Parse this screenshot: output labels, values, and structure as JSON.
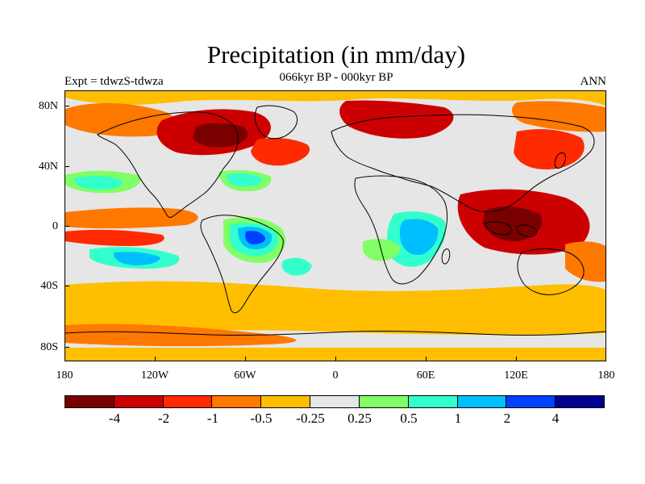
{
  "header": {
    "title": "Precipitation (in mm/day)",
    "left": "Expt = tdwzS-tdwza",
    "center": "066kyr BP - 000kyr BP",
    "right": "ANN"
  },
  "axes": {
    "y_labels": [
      "80N",
      "40N",
      "0",
      "40S",
      "80S"
    ],
    "x_labels": [
      "180",
      "120W",
      "60W",
      "0",
      "60E",
      "120E",
      "180"
    ]
  },
  "colorbar": {
    "colors": [
      "#7a0000",
      "#cc0000",
      "#ff2a00",
      "#ff7800",
      "#ffbe00",
      "#e6e6e6",
      "#80ff66",
      "#33ffcc",
      "#00bfff",
      "#0040ff",
      "#000090"
    ],
    "labels": [
      "-4",
      "-2",
      "-1",
      "-0.5",
      "-0.25",
      "0.25",
      "0.5",
      "1",
      "2",
      "4"
    ]
  },
  "legend_colors": {
    "dark_red": "#7a0000",
    "red": "#cc0000",
    "red_orange": "#ff2a00",
    "orange": "#ff7800",
    "yellow_orange": "#ffbe00",
    "neutral": "#e6e6e6",
    "light_green": "#80ff66",
    "aqua": "#33ffcc",
    "sky_blue": "#00bfff",
    "blue": "#0040ff",
    "navy": "#000090"
  }
}
